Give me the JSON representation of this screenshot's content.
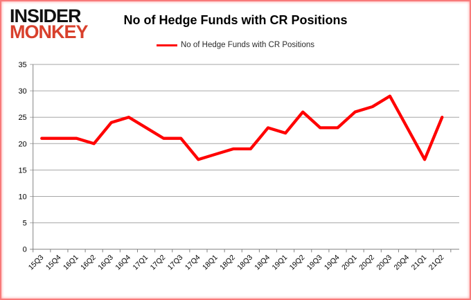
{
  "window": {
    "background": "#ffffff",
    "border_color": "#f87a7a"
  },
  "logo": {
    "line1": "INSIDER",
    "line2": "MONKEY",
    "line1_color": "#111111",
    "line2_color": "#d8402c"
  },
  "header": {
    "title": "No of Hedge Funds with CR Positions"
  },
  "legend": {
    "label": "No of Hedge Funds with CR Positions",
    "line_color": "#ff0000"
  },
  "chart_data": {
    "type": "line",
    "title": "No of Hedge Funds with CR Positions",
    "categories": [
      "15Q3",
      "15Q4",
      "16Q1",
      "16Q2",
      "16Q3",
      "16Q4",
      "17Q1",
      "17Q2",
      "17Q3",
      "17Q4",
      "18Q1",
      "18Q2",
      "18Q3",
      "18Q4",
      "19Q1",
      "19Q2",
      "19Q3",
      "19Q4",
      "20Q1",
      "20Q2",
      "20Q3",
      "20Q4",
      "21Q1",
      "21Q2"
    ],
    "series": [
      {
        "name": "No of Hedge Funds with CR Positions",
        "color": "#ff0000",
        "values": [
          21,
          21,
          21,
          20,
          24,
          25,
          23,
          21,
          21,
          17,
          18,
          19,
          19,
          23,
          22,
          26,
          23,
          23,
          26,
          27,
          29,
          23,
          17,
          25
        ]
      }
    ],
    "xlabel": "",
    "ylabel": "",
    "ylim": [
      0,
      35
    ],
    "yticks": [
      0,
      5,
      10,
      15,
      20,
      25,
      30,
      35
    ],
    "grid": true,
    "legend_position": "top-center",
    "gridline_color": "#a6a6a6",
    "axis_color": "#808080",
    "label_color": "#000000"
  }
}
